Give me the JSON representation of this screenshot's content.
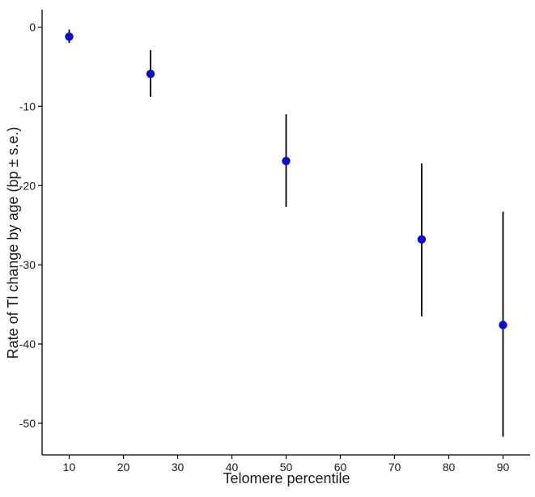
{
  "chart_data": {
    "type": "scatter",
    "title": "",
    "xlabel": "Telomere percentile",
    "ylabel": "Rate of Tl change by age (bp ± s.e.)",
    "xlim": [
      5,
      95
    ],
    "ylim": [
      -54,
      2.2
    ],
    "x_ticks": [
      10,
      20,
      30,
      40,
      50,
      60,
      70,
      80,
      90
    ],
    "y_ticks": [
      0,
      -10,
      -20,
      -30,
      -40,
      -50
    ],
    "grid": false,
    "legend": "none",
    "point_color": "#0a0ad6",
    "errorbar_color": "#000000",
    "points": [
      {
        "x": 10,
        "y": -1.2,
        "ymin": -2.0,
        "ymax": -0.3
      },
      {
        "x": 25,
        "y": -5.9,
        "ymin": -8.8,
        "ymax": -2.9
      },
      {
        "x": 50,
        "y": -16.9,
        "ymin": -22.7,
        "ymax": -11.0
      },
      {
        "x": 75,
        "y": -26.8,
        "ymin": -36.5,
        "ymax": -17.2
      },
      {
        "x": 90,
        "y": -37.6,
        "ymin": -51.7,
        "ymax": -23.3
      }
    ]
  }
}
